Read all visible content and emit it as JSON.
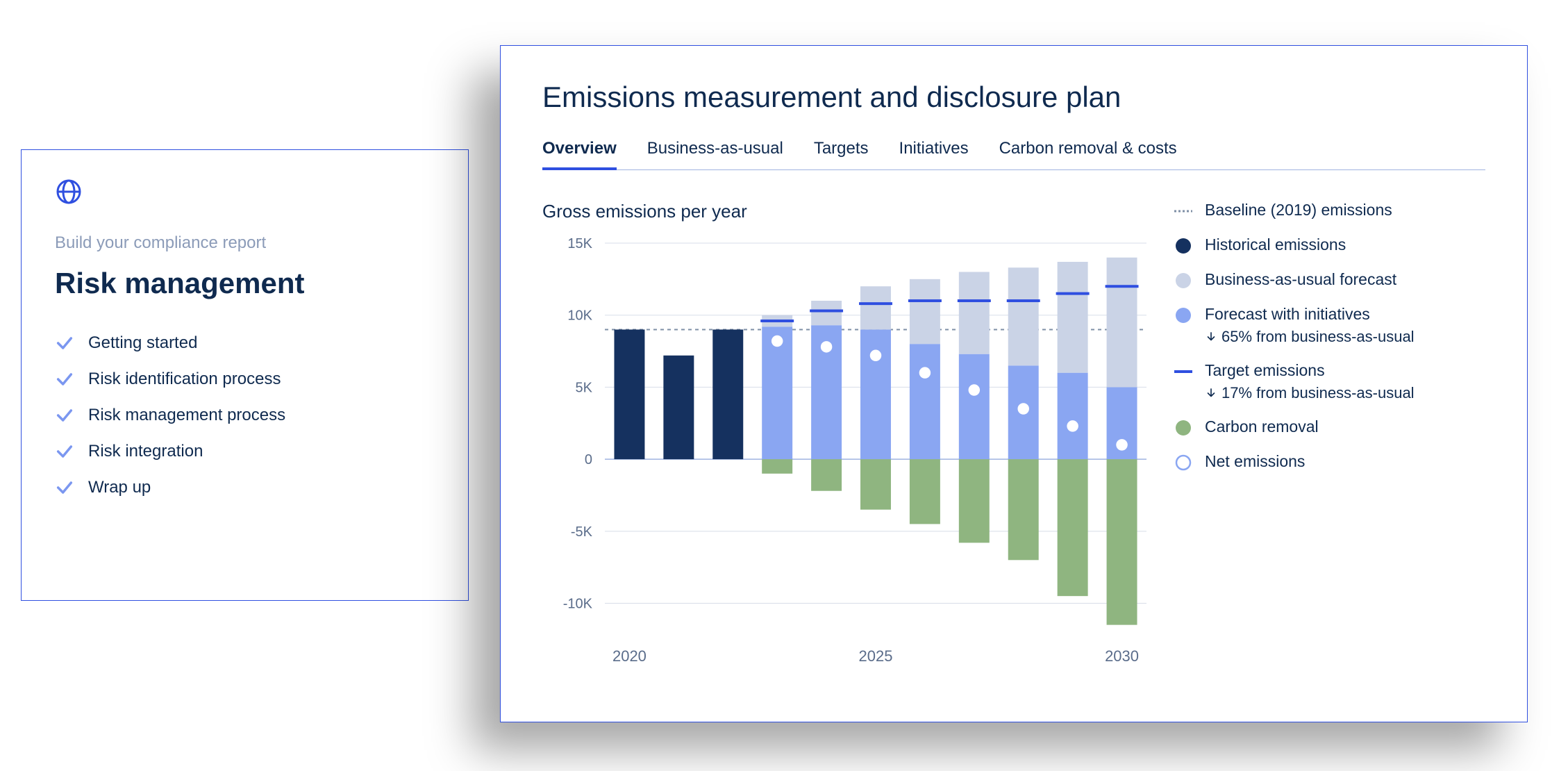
{
  "left_card": {
    "eyebrow": "Build your compliance report",
    "title": "Risk management",
    "items": [
      "Getting started",
      "Risk identification process",
      "Risk management process",
      "Risk integration",
      "Wrap up"
    ],
    "check_color": "#7b97f0",
    "logo_color": "#2f4fe0"
  },
  "right_card": {
    "title": "Emissions measurement and disclosure plan",
    "tabs": [
      "Overview",
      "Business-as-usual",
      "Targets",
      "Initiatives",
      "Carbon removal & costs"
    ],
    "active_tab": 0,
    "chart": {
      "title": "Gross emissions per year",
      "type": "stacked-bar",
      "y_ticks": [
        -10,
        -5,
        0,
        5,
        10,
        15
      ],
      "y_tick_labels": [
        "-10K",
        "-5K",
        "0",
        "5K",
        "10K",
        "15K"
      ],
      "ylim": [
        -12,
        15
      ],
      "x_years": [
        2020,
        2021,
        2022,
        2023,
        2024,
        2025,
        2026,
        2027,
        2028,
        2029,
        2030
      ],
      "x_labels_visible": {
        "2020": "2020",
        "2025": "2025",
        "2030": "2030"
      },
      "baseline": 9,
      "colors": {
        "historical": "#15315f",
        "bau": "#cad3e6",
        "forecast": "#8aa6f2",
        "target_line": "#2f4fe0",
        "removal": "#8fb580",
        "net_marker": "#ffffff",
        "grid": "#d7dde8",
        "baseline_dash": "#7f8fa6",
        "axis_text": "#5a6c8a"
      },
      "bar_width": 0.62,
      "bars": [
        {
          "year": 2020,
          "historical": 9,
          "forecast": 0,
          "bau": 0,
          "target": null,
          "removal": 0,
          "net": null
        },
        {
          "year": 2021,
          "historical": 7.2,
          "forecast": 0,
          "bau": 0,
          "target": null,
          "removal": 0,
          "net": null
        },
        {
          "year": 2022,
          "historical": 9,
          "forecast": 0,
          "bau": 0,
          "target": null,
          "removal": 0,
          "net": null
        },
        {
          "year": 2023,
          "historical": 0,
          "forecast": 9.2,
          "bau": 10,
          "target": 9.6,
          "removal": -1,
          "net": 8.2
        },
        {
          "year": 2024,
          "historical": 0,
          "forecast": 9.3,
          "bau": 11,
          "target": 10.3,
          "removal": -2.2,
          "net": 7.8
        },
        {
          "year": 2025,
          "historical": 0,
          "forecast": 9,
          "bau": 12,
          "target": 10.8,
          "removal": -3.5,
          "net": 7.2
        },
        {
          "year": 2026,
          "historical": 0,
          "forecast": 8,
          "bau": 12.5,
          "target": 11,
          "removal": -4.5,
          "net": 6
        },
        {
          "year": 2027,
          "historical": 0,
          "forecast": 7.3,
          "bau": 13,
          "target": 11,
          "removal": -5.8,
          "net": 4.8
        },
        {
          "year": 2028,
          "historical": 0,
          "forecast": 6.5,
          "bau": 13.3,
          "target": 11,
          "removal": -7,
          "net": 3.5
        },
        {
          "year": 2029,
          "historical": 0,
          "forecast": 6,
          "bau": 13.7,
          "target": 11.5,
          "removal": -9.5,
          "net": 2.3
        },
        {
          "year": 2030,
          "historical": 0,
          "forecast": 5,
          "bau": 14,
          "target": 12,
          "removal": -11.5,
          "net": 1
        }
      ]
    },
    "legend": [
      {
        "kind": "baseline",
        "label": "Baseline (2019) emissions"
      },
      {
        "kind": "circle",
        "color": "#15315f",
        "label": "Historical emissions"
      },
      {
        "kind": "circle",
        "color": "#cad3e6",
        "label": "Business-as-usual forecast"
      },
      {
        "kind": "circle",
        "color": "#8aa6f2",
        "label": "Forecast with initiatives",
        "sub": "65% from business-as-usual"
      },
      {
        "kind": "line",
        "color": "#2f4fe0",
        "label": "Target emissions",
        "sub": "17% from business-as-usual"
      },
      {
        "kind": "circle",
        "color": "#8fb580",
        "label": "Carbon removal"
      },
      {
        "kind": "ring",
        "color": "#8aa6f2",
        "label": "Net emissions"
      }
    ]
  }
}
